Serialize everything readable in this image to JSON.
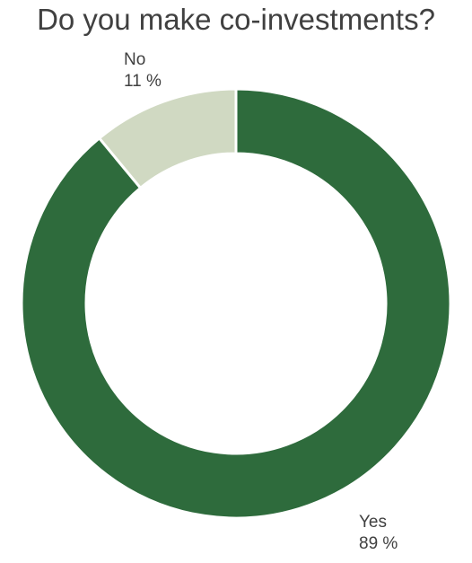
{
  "chart_data": {
    "type": "pie",
    "title": "Do you make co-investments?",
    "donut": true,
    "slices": [
      {
        "label": "Yes",
        "value": 89,
        "value_label": "89 %",
        "color": "#2e6b3c"
      },
      {
        "label": "No",
        "value": 11,
        "value_label": "11 %",
        "color": "#d0d9c2"
      }
    ],
    "legend": "none"
  }
}
